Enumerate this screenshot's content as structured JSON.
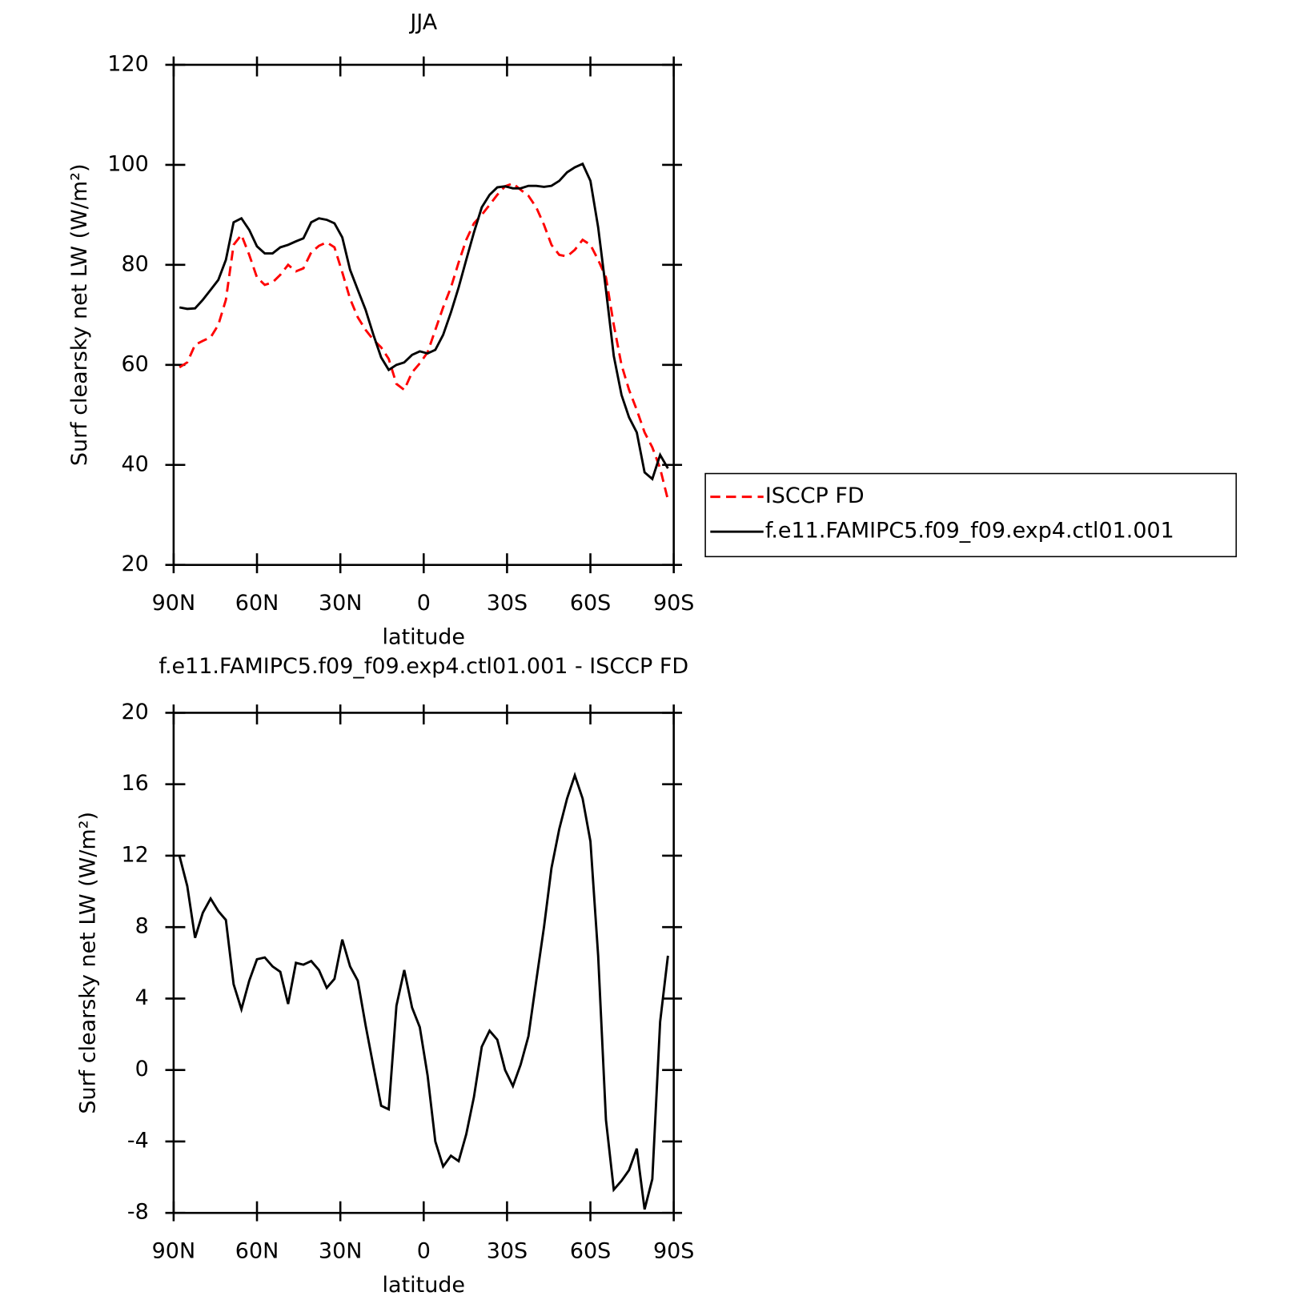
{
  "chart_data": [
    {
      "type": "line",
      "title": "JJA",
      "x_label": "latitude",
      "y_label": "Surf clearsky net LW (W/m²)",
      "xlim": [
        90,
        -90
      ],
      "xticks": [
        {
          "value": 90,
          "label": "90N"
        },
        {
          "value": 60,
          "label": "60N"
        },
        {
          "value": 30,
          "label": "30N"
        },
        0,
        {
          "value": -30,
          "label": "30S"
        },
        {
          "value": -60,
          "label": "60S"
        },
        {
          "value": -90,
          "label": "90S"
        }
      ],
      "ylim": [
        20,
        120
      ],
      "yticks": [
        20,
        40,
        60,
        80,
        100,
        120
      ],
      "legend": "right",
      "x": [
        87.9,
        85.1,
        82.3,
        79.5,
        76.7,
        73.9,
        71.2,
        68.4,
        65.6,
        62.8,
        60.0,
        57.2,
        54.4,
        51.6,
        48.8,
        46.0,
        43.3,
        40.5,
        37.7,
        34.9,
        32.1,
        29.3,
        26.5,
        23.7,
        20.9,
        18.1,
        15.3,
        12.6,
        9.8,
        7.0,
        4.2,
        1.4,
        -1.4,
        -4.2,
        -7.0,
        -9.8,
        -12.6,
        -15.3,
        -18.1,
        -20.9,
        -23.7,
        -26.5,
        -29.3,
        -32.1,
        -34.9,
        -37.7,
        -40.5,
        -43.3,
        -46.0,
        -48.8,
        -51.6,
        -54.4,
        -57.2,
        -60.0,
        -62.8,
        -65.6,
        -68.4,
        -71.2,
        -73.9,
        -76.7,
        -79.5,
        -82.3,
        -85.1,
        -87.9
      ],
      "series": [
        {
          "name": "ISCCP FD",
          "color": "#ff0000",
          "linestyle": "dashed",
          "values": [
            59.5,
            60.5,
            64,
            64.8,
            65.5,
            68,
            73,
            84,
            86,
            82,
            77.5,
            76,
            76.5,
            78,
            80,
            78.7,
            79.3,
            82.5,
            83.8,
            84.5,
            83.5,
            78.5,
            73.2,
            69.5,
            67,
            65,
            63.5,
            61.2,
            56.2,
            55,
            58.5,
            60.3,
            62.5,
            67,
            71.5,
            75.5,
            80.5,
            85,
            88.3,
            90,
            92,
            94,
            95.7,
            96.3,
            95,
            93.8,
            91.5,
            88,
            84,
            82,
            81.7,
            83,
            85,
            84,
            81,
            77.5,
            68,
            60,
            55,
            51,
            46.5,
            43.5,
            39.3,
            33
          ]
        },
        {
          "name": "f.e11.FAMIPC5.f09_f09.exp4.ctl01.001",
          "color": "#000000",
          "linestyle": "solid",
          "values": [
            71.5,
            71.2,
            71.3,
            73,
            75,
            77,
            81,
            88.5,
            89.3,
            87,
            83.7,
            82.3,
            82.3,
            83.5,
            84,
            84.7,
            85.3,
            88.5,
            89.3,
            89,
            88.3,
            85.5,
            79,
            75,
            71,
            66,
            61.5,
            59,
            60,
            60.5,
            62,
            62.7,
            62.3,
            63,
            66,
            70.5,
            75.5,
            81,
            86.5,
            91.5,
            94,
            95.5,
            95.7,
            95.3,
            95.3,
            95.8,
            95.8,
            95.6,
            95.8,
            96.8,
            98.5,
            99.5,
            100.2,
            96.8,
            87.5,
            75,
            61.8,
            54,
            49.5,
            46.5,
            38.5,
            37.2,
            42,
            39.3
          ]
        }
      ]
    },
    {
      "type": "line",
      "title": "f.e11.FAMIPC5.f09_f09.exp4.ctl01.001 - ISCCP FD",
      "x_label": "latitude",
      "y_label": "Surf clearsky net LW (W/m²)",
      "xlim": [
        90,
        -90
      ],
      "xticks": [
        {
          "value": 90,
          "label": "90N"
        },
        {
          "value": 60,
          "label": "60N"
        },
        {
          "value": 30,
          "label": "30N"
        },
        0,
        {
          "value": -30,
          "label": "30S"
        },
        {
          "value": -60,
          "label": "60S"
        },
        {
          "value": -90,
          "label": "90S"
        }
      ],
      "ylim": [
        -8,
        20
      ],
      "yticks": [
        -8,
        -4,
        0,
        4,
        8,
        12,
        16,
        20
      ],
      "x": [
        87.9,
        85.1,
        82.3,
        79.5,
        76.7,
        73.9,
        71.2,
        68.4,
        65.6,
        62.8,
        60.0,
        57.2,
        54.4,
        51.6,
        48.8,
        46.0,
        43.3,
        40.5,
        37.7,
        34.9,
        32.1,
        29.3,
        26.5,
        23.7,
        20.9,
        18.1,
        15.3,
        12.6,
        9.8,
        7.0,
        4.2,
        1.4,
        -1.4,
        -4.2,
        -7.0,
        -9.8,
        -12.6,
        -15.3,
        -18.1,
        -20.9,
        -23.7,
        -26.5,
        -29.3,
        -32.1,
        -34.9,
        -37.7,
        -40.5,
        -43.3,
        -46.0,
        -48.8,
        -51.6,
        -54.4,
        -57.2,
        -60.0,
        -62.8,
        -65.6,
        -68.4,
        -71.2,
        -73.9,
        -76.7,
        -79.5,
        -82.3,
        -85.1,
        -87.9
      ],
      "color": "#000000",
      "values": [
        12,
        10.3,
        7.4,
        8.8,
        9.6,
        8.9,
        8.4,
        4.8,
        3.4,
        5,
        6.2,
        6.3,
        5.8,
        5.5,
        3.7,
        6,
        5.9,
        6.1,
        5.6,
        4.6,
        5.1,
        7.3,
        5.8,
        5,
        2.5,
        0.2,
        -2,
        -2.2,
        3.6,
        5.6,
        3.5,
        2.4,
        -0.3,
        -4,
        -5.4,
        -4.8,
        -5.1,
        -3.6,
        -1.5,
        1.3,
        2.2,
        1.7,
        0,
        -0.9,
        0.3,
        1.9,
        5,
        8,
        11.3,
        13.5,
        15.2,
        16.5,
        15.2,
        12.8,
        6.4,
        -2.8,
        -6.7,
        -6.2,
        -5.6,
        -4.4,
        -7.8,
        -6.1,
        2.7,
        6.4
      ]
    }
  ]
}
